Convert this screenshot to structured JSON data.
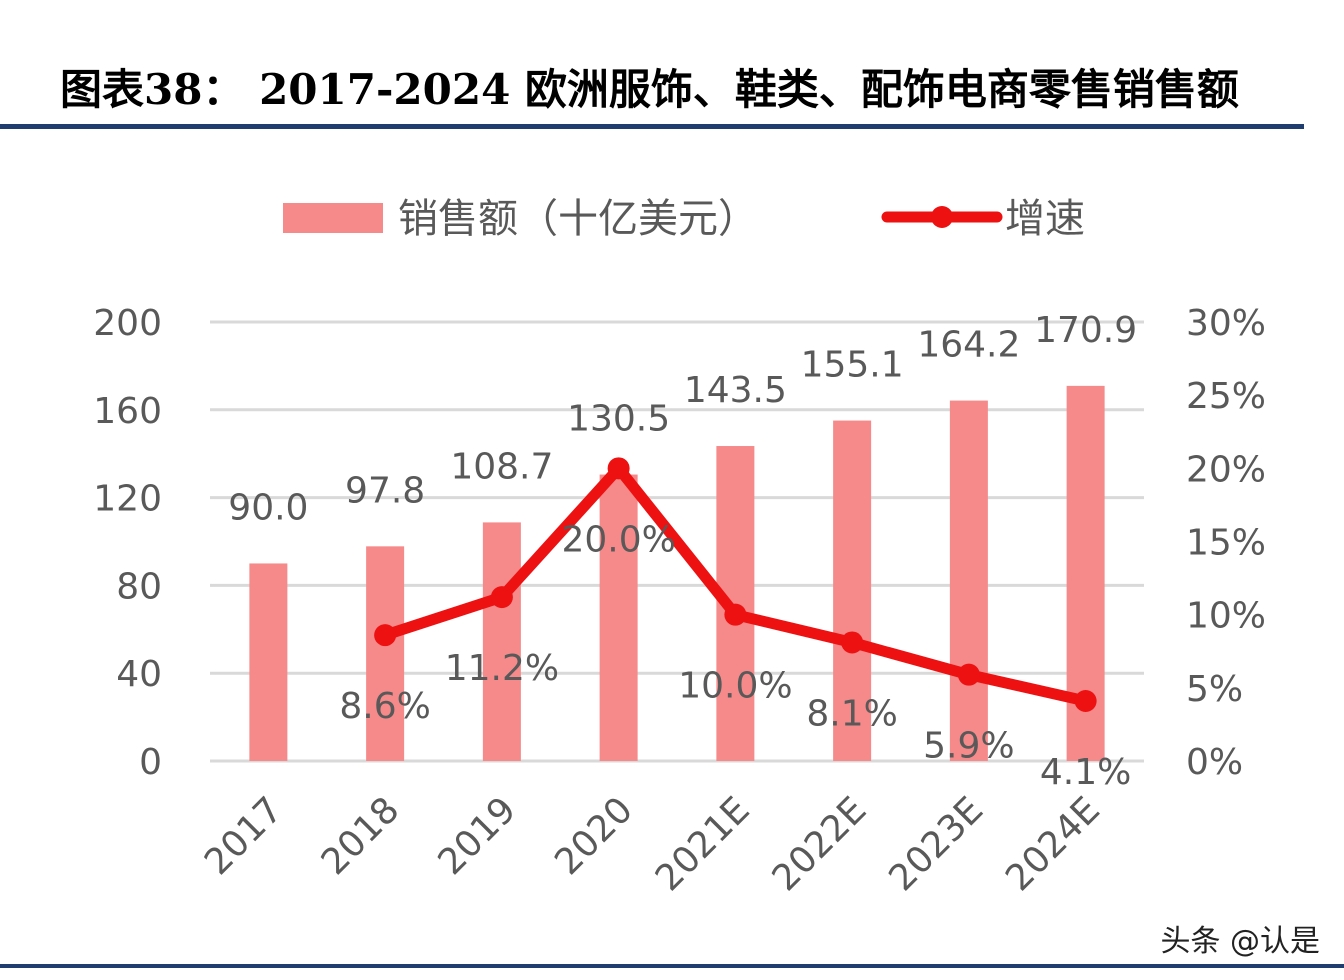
{
  "header": {
    "title": "图表38：  2017-2024 欧洲服饰、鞋类、配饰电商零售销售额"
  },
  "watermark": "头条 @认是",
  "colors": {
    "bar": "#f68a8a",
    "line": "#ee1111",
    "grid": "#d9d9d9",
    "text": "#595959",
    "rule": "#1f3d6e"
  },
  "chart_data": {
    "type": "bar",
    "categories": [
      "2017",
      "2018",
      "2019",
      "2020",
      "2021E",
      "2022E",
      "2023E",
      "2024E"
    ],
    "series": [
      {
        "name": "销售额（十亿美元）",
        "type": "bar",
        "axis": "left",
        "values": [
          90.0,
          97.8,
          108.7,
          130.5,
          143.5,
          155.1,
          164.2,
          170.9
        ],
        "labels": [
          "90.0",
          "97.8",
          "108.7",
          "130.5",
          "143.5",
          "155.1",
          "164.2",
          "170.9"
        ]
      },
      {
        "name": "增速",
        "type": "line",
        "axis": "right",
        "values": [
          null,
          8.6,
          11.2,
          20.0,
          10.0,
          8.1,
          5.9,
          4.1
        ],
        "labels": [
          "",
          "8.6%",
          "11.2%",
          "20.0%",
          "10.0%",
          "8.1%",
          "5.9%",
          "4.1%"
        ]
      }
    ],
    "y_left": {
      "ylim": [
        0,
        200
      ],
      "ticks": [
        "0",
        "40",
        "80",
        "120",
        "160",
        "200"
      ]
    },
    "y_right": {
      "ylim": [
        0,
        30
      ],
      "ticks": [
        "0%",
        "5%",
        "10%",
        "15%",
        "20%",
        "25%",
        "30%"
      ]
    },
    "grid": true,
    "legend": "top"
  }
}
